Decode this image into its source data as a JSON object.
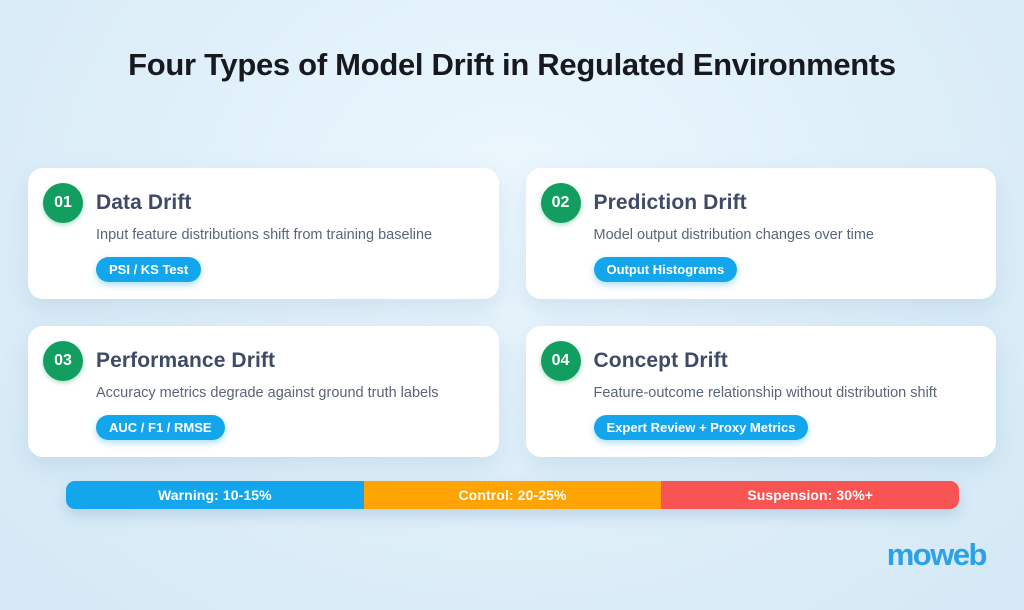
{
  "title": "Four Types of Model Drift in Regulated Environments",
  "cards": [
    {
      "number": "01",
      "title": "Data Drift",
      "description": "Input feature distributions shift from training baseline",
      "badge": "PSI / KS Test"
    },
    {
      "number": "02",
      "title": "Prediction Drift",
      "description": "Model output distribution changes over time",
      "badge": "Output Histograms"
    },
    {
      "number": "03",
      "title": "Performance Drift",
      "description": "Accuracy metrics degrade against ground truth labels",
      "badge": "AUC / F1 / RMSE"
    },
    {
      "number": "04",
      "title": "Concept Drift",
      "description": "Feature-outcome relationship without distribution shift",
      "badge": "Expert Review + Proxy Metrics"
    }
  ],
  "threshold_bar": {
    "segments": [
      {
        "label": "Warning: 10-15%",
        "color": "#14a6ec"
      },
      {
        "label": "Control: 20-25%",
        "color": "#ffa402"
      },
      {
        "label": "Suspension: 30%+",
        "color": "#f85454"
      }
    ]
  },
  "logo": {
    "text": "moweb",
    "color": "#2aa1e8"
  },
  "colors": {
    "number_circle": "#119e60",
    "badge": "#14a6ec"
  }
}
